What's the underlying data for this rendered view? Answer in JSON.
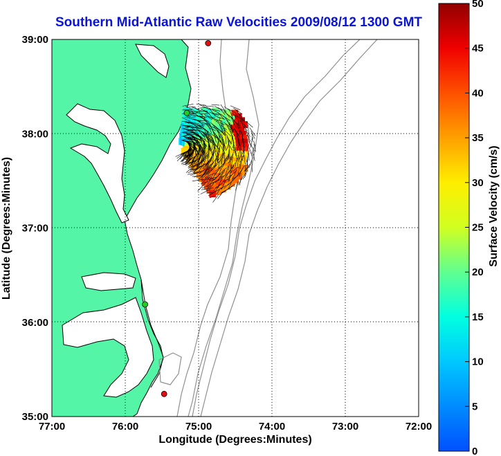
{
  "title": "Southern Mid-Atlantic Raw Velocities 2009/08/12 1300 GMT",
  "chart_data": {
    "type": "map",
    "title": "Southern Mid-Atlantic Raw Velocities 2009/08/12 1300 GMT",
    "xlabel": "Longitude (Degrees:Minutes)",
    "ylabel": "Latitude (Degrees:Minutes)",
    "xlim": [
      -77,
      -72
    ],
    "ylim": [
      35,
      39
    ],
    "x_ticks": [
      "77:00",
      "76:00",
      "75:00",
      "74:00",
      "73:00",
      "72:00"
    ],
    "y_ticks": [
      "39:00",
      "38:00",
      "37:00",
      "36:00",
      "35:00"
    ],
    "grid": true,
    "colorbar": {
      "label": "Surface Velocity (cm/s)",
      "range": [
        0,
        50
      ],
      "ticks": [
        "0",
        "5",
        "10",
        "15",
        "20",
        "25",
        "30",
        "35",
        "40",
        "45",
        "50"
      ]
    },
    "stations": [
      {
        "lon": -74.87,
        "lat": 38.96,
        "color": "#e01010"
      },
      {
        "lon": -75.16,
        "lat": 38.22,
        "color": "#22cc22"
      },
      {
        "lon": -75.73,
        "lat": 36.19,
        "color": "#22cc22"
      },
      {
        "lon": -75.47,
        "lat": 35.24,
        "color": "#e01010"
      }
    ],
    "land_color": "#55f5a8",
    "bathymetry_color": "#909090"
  }
}
